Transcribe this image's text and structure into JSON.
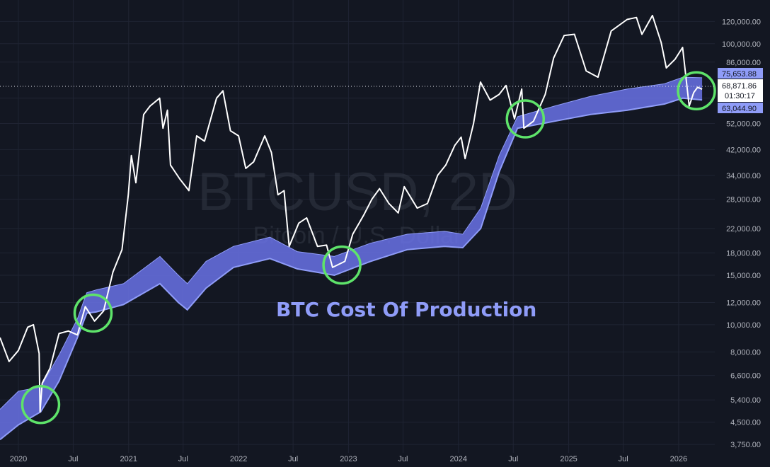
{
  "watermark": {
    "symbol": "BTCUSD, 2D",
    "name": "Bitcoin / U.S. Dollar"
  },
  "annotation": "BTC Cost Of Production",
  "price_labels": {
    "upper_band": "75,653.88",
    "last_price": "68,871.86",
    "countdown": "01:30:17",
    "lower_band": "63,044.90"
  },
  "colors": {
    "background": "#131722",
    "price_line": "#ffffff",
    "band_fill": "#6a72e6",
    "band_edge": "#8f9cf8",
    "circle": "#5ee36a"
  },
  "chart_data": {
    "type": "line",
    "y_scale": "log",
    "ylim": [
      3500,
      135000
    ],
    "x_range": [
      "2019-11",
      "2026-05"
    ],
    "x_tick_labels": [
      "2020",
      "Jul",
      "2021",
      "Jul",
      "2022",
      "Jul",
      "2023",
      "Jul",
      "2024",
      "Jul",
      "2025",
      "Jul",
      "2026"
    ],
    "y_tick_labels": [
      "120,000.00",
      "100,000.00",
      "86,000.00",
      "64,000.00",
      "52,000.00",
      "42,000.00",
      "34,000.00",
      "28,000.00",
      "22,000.00",
      "18,000.00",
      "15,000.00",
      "12,000.00",
      "10,000.00",
      "8,000.00",
      "6,600.00",
      "5,400.00",
      "4,500.00",
      "3,750.00"
    ],
    "series": [
      {
        "values": [
          [
            "2019-11-01",
            9000
          ],
          [
            "2019-12-01",
            7400
          ],
          [
            "2020-01-01",
            8100
          ],
          [
            "2020-02-01",
            9800
          ],
          [
            "2020-02-20",
            10000
          ],
          [
            "2020-03-10",
            7900
          ],
          [
            "2020-03-13",
            4900
          ],
          [
            "2020-03-20",
            6200
          ],
          [
            "2020-04-15",
            7000
          ],
          [
            "2020-05-15",
            9300
          ],
          [
            "2020-06-15",
            9500
          ],
          [
            "2020-07-15",
            9200
          ],
          [
            "2020-08-10",
            11600
          ],
          [
            "2020-09-10",
            10300
          ],
          [
            "2020-10-10",
            11200
          ],
          [
            "2020-11-10",
            15400
          ],
          [
            "2020-12-10",
            18500
          ],
          [
            "2020-12-31",
            29000
          ],
          [
            "2021-01-10",
            40000
          ],
          [
            "2021-01-25",
            32000
          ],
          [
            "2021-02-20",
            56000
          ],
          [
            "2021-03-13",
            60000
          ],
          [
            "2021-04-14",
            64000
          ],
          [
            "2021-04-25",
            50000
          ],
          [
            "2021-05-10",
            58000
          ],
          [
            "2021-05-20",
            37000
          ],
          [
            "2021-06-20",
            33000
          ],
          [
            "2021-07-20",
            30000
          ],
          [
            "2021-08-15",
            47000
          ],
          [
            "2021-09-10",
            45000
          ],
          [
            "2021-10-20",
            64000
          ],
          [
            "2021-11-10",
            68000
          ],
          [
            "2021-12-05",
            49000
          ],
          [
            "2022-01-01",
            47000
          ],
          [
            "2022-01-25",
            36000
          ],
          [
            "2022-02-20",
            38000
          ],
          [
            "2022-03-29",
            47000
          ],
          [
            "2022-04-20",
            41000
          ],
          [
            "2022-05-12",
            29000
          ],
          [
            "2022-06-01",
            30000
          ],
          [
            "2022-06-18",
            19000
          ],
          [
            "2022-07-20",
            23000
          ],
          [
            "2022-08-15",
            24000
          ],
          [
            "2022-09-20",
            19000
          ],
          [
            "2022-10-20",
            19200
          ],
          [
            "2022-11-09",
            16000
          ],
          [
            "2022-12-20",
            16800
          ],
          [
            "2023-01-15",
            21000
          ],
          [
            "2023-02-20",
            24500
          ],
          [
            "2023-03-20",
            28000
          ],
          [
            "2023-04-14",
            30500
          ],
          [
            "2023-05-15",
            27000
          ],
          [
            "2023-06-15",
            25000
          ],
          [
            "2023-07-05",
            31000
          ],
          [
            "2023-08-17",
            26000
          ],
          [
            "2023-09-20",
            27000
          ],
          [
            "2023-10-24",
            34000
          ],
          [
            "2023-11-20",
            37000
          ],
          [
            "2023-12-20",
            43500
          ],
          [
            "2024-01-10",
            46500
          ],
          [
            "2024-01-23",
            39000
          ],
          [
            "2024-02-20",
            52000
          ],
          [
            "2024-03-14",
            73000
          ],
          [
            "2024-04-15",
            63000
          ],
          [
            "2024-05-15",
            66000
          ],
          [
            "2024-06-07",
            71000
          ],
          [
            "2024-07-05",
            54000
          ],
          [
            "2024-07-29",
            69000
          ],
          [
            "2024-08-05",
            50000
          ],
          [
            "2024-09-06",
            53000
          ],
          [
            "2024-10-15",
            66000
          ],
          [
            "2024-11-12",
            89000
          ],
          [
            "2024-12-17",
            107000
          ],
          [
            "2025-01-20",
            108000
          ],
          [
            "2025-02-28",
            80000
          ],
          [
            "2025-04-08",
            76000
          ],
          [
            "2025-05-22",
            111000
          ],
          [
            "2025-07-14",
            122000
          ],
          [
            "2025-08-14",
            124000
          ],
          [
            "2025-09-01",
            108000
          ],
          [
            "2025-10-06",
            126000
          ],
          [
            "2025-11-04",
            101000
          ],
          [
            "2025-11-21",
            82000
          ],
          [
            "2025-12-20",
            88000
          ],
          [
            "2026-01-14",
            97000
          ],
          [
            "2026-02-05",
            60000
          ],
          [
            "2026-02-20",
            67000
          ],
          [
            "2026-03-05",
            70000
          ],
          [
            "2026-03-20",
            68872
          ]
        ]
      },
      {
        "values": [
          [
            "2019-11-01",
            3900
          ],
          [
            "2020-01-01",
            4400
          ],
          [
            "2020-03-15",
            4900
          ],
          [
            "2020-05-15",
            6300
          ],
          [
            "2020-07-15",
            9000
          ],
          [
            "2020-08-15",
            11000
          ],
          [
            "2020-09-15",
            11100
          ],
          [
            "2020-12-15",
            11800
          ],
          [
            "2021-04-15",
            14000
          ],
          [
            "2021-06-15",
            12000
          ],
          [
            "2021-07-15",
            11300
          ],
          [
            "2021-09-15",
            13500
          ],
          [
            "2021-12-15",
            16000
          ],
          [
            "2022-04-15",
            17200
          ],
          [
            "2022-07-15",
            15800
          ],
          [
            "2022-11-15",
            15000
          ],
          [
            "2023-03-15",
            16800
          ],
          [
            "2023-07-15",
            18500
          ],
          [
            "2023-11-15",
            19000
          ],
          [
            "2024-01-15",
            18800
          ],
          [
            "2024-03-15",
            22000
          ],
          [
            "2024-05-15",
            35000
          ],
          [
            "2024-07-15",
            50000
          ],
          [
            "2024-11-15",
            53000
          ],
          [
            "2025-03-15",
            56000
          ],
          [
            "2025-07-15",
            58000
          ],
          [
            "2025-11-15",
            61000
          ],
          [
            "2026-01-15",
            64000
          ],
          [
            "2026-03-20",
            63045
          ]
        ]
      },
      {
        "values": [
          [
            "2019-11-01",
            5000
          ],
          [
            "2020-01-01",
            5800
          ],
          [
            "2020-03-15",
            6000
          ],
          [
            "2020-05-15",
            7800
          ],
          [
            "2020-07-15",
            10500
          ],
          [
            "2020-08-15",
            13000
          ],
          [
            "2020-09-15",
            13300
          ],
          [
            "2020-12-15",
            14000
          ],
          [
            "2021-04-15",
            17500
          ],
          [
            "2021-06-15",
            15000
          ],
          [
            "2021-07-15",
            14000
          ],
          [
            "2021-09-15",
            16800
          ],
          [
            "2021-12-15",
            19000
          ],
          [
            "2022-04-15",
            20500
          ],
          [
            "2022-07-15",
            18200
          ],
          [
            "2022-11-15",
            17500
          ],
          [
            "2023-03-15",
            19500
          ],
          [
            "2023-07-15",
            21000
          ],
          [
            "2023-11-15",
            21500
          ],
          [
            "2024-01-15",
            21000
          ],
          [
            "2024-03-15",
            26000
          ],
          [
            "2024-05-15",
            40000
          ],
          [
            "2024-07-15",
            55000
          ],
          [
            "2024-11-15",
            60000
          ],
          [
            "2025-03-15",
            65000
          ],
          [
            "2025-07-15",
            69000
          ],
          [
            "2025-11-15",
            72000
          ],
          [
            "2026-01-15",
            76000
          ],
          [
            "2026-03-20",
            75654
          ]
        ]
      }
    ],
    "highlight_dates": [
      [
        "2020-03-15",
        5200
      ],
      [
        "2020-09-05",
        11000
      ],
      [
        "2022-12-10",
        16300
      ],
      [
        "2024-08-10",
        54000
      ],
      [
        "2026-03-01",
        68000
      ]
    ]
  }
}
